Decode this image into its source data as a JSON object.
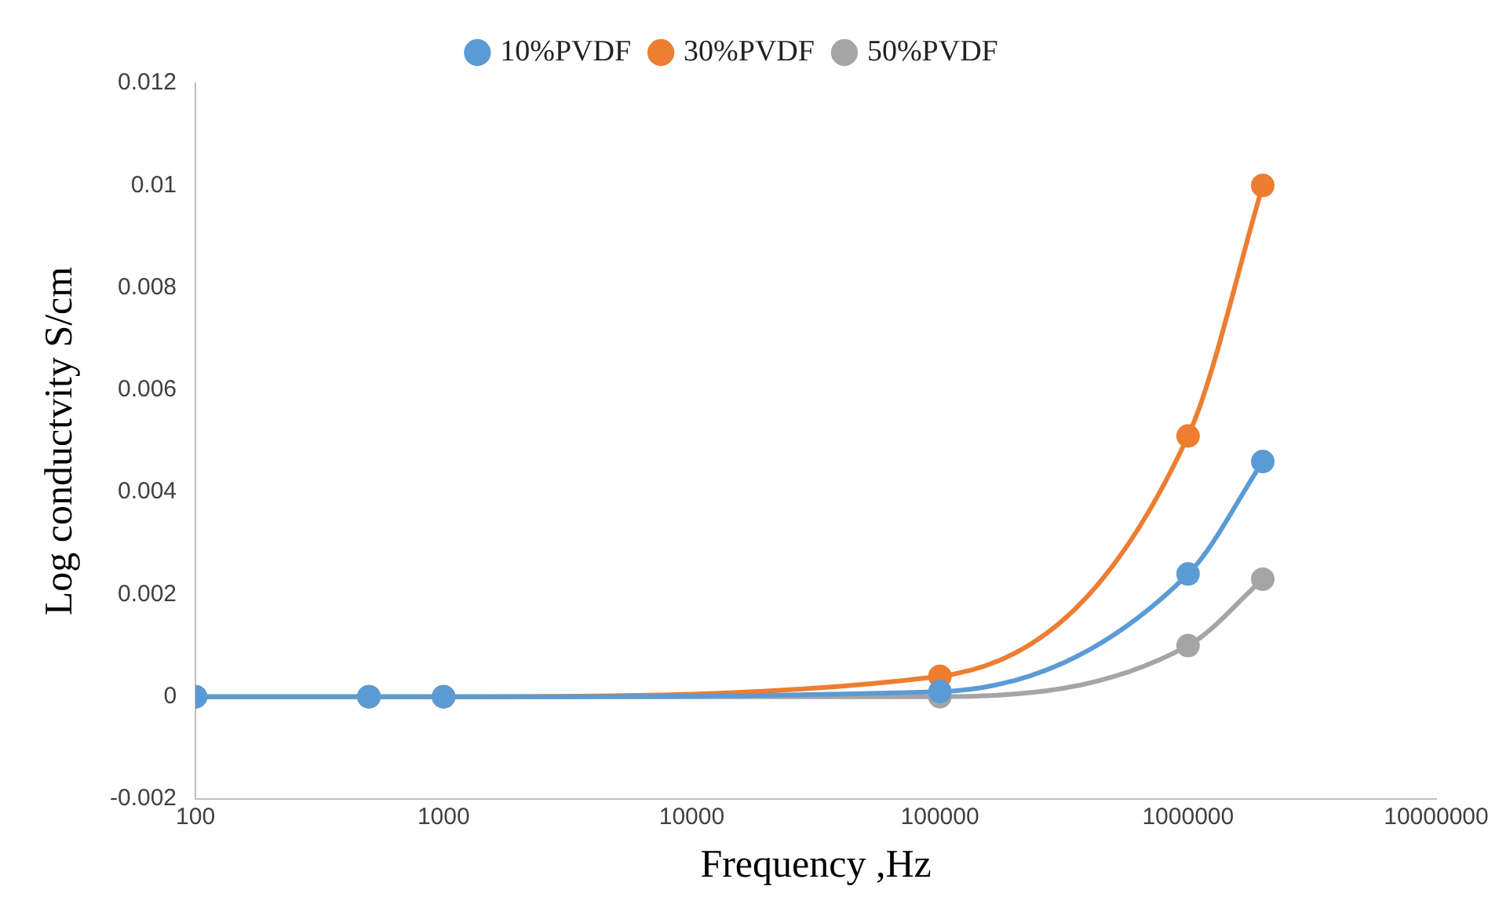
{
  "chart_data": {
    "type": "line",
    "xlabel": "Frequency ,Hz",
    "ylabel": "Log conductvity S/cm",
    "x": [
      100,
      500,
      1000,
      100000,
      1000000,
      2000000
    ],
    "series": [
      {
        "name": "10%PVDF",
        "color": "#5b9bd5",
        "values": [
          0,
          0,
          0,
          0.0001,
          0.0024,
          0.0046
        ]
      },
      {
        "name": "30%PVDF",
        "color": "#ed7d31",
        "values": [
          0,
          0,
          0,
          0.0004,
          0.0051,
          0.01
        ]
      },
      {
        "name": "50%PVDF",
        "color": "#a5a5a5",
        "values": [
          0,
          0,
          0,
          0,
          0.001,
          0.0023
        ]
      }
    ],
    "log": "x",
    "xlim": [
      100,
      10000000
    ],
    "xticks": [
      100,
      1000,
      10000,
      100000,
      1000000,
      10000000
    ],
    "ylim": [
      -0.002,
      0.012
    ],
    "yticks": [
      -0.002,
      0,
      0.002,
      0.004,
      0.006,
      0.008,
      0.01,
      0.012
    ],
    "grid": false,
    "legend": "top",
    "marker": "circle",
    "line_style": "solid"
  }
}
